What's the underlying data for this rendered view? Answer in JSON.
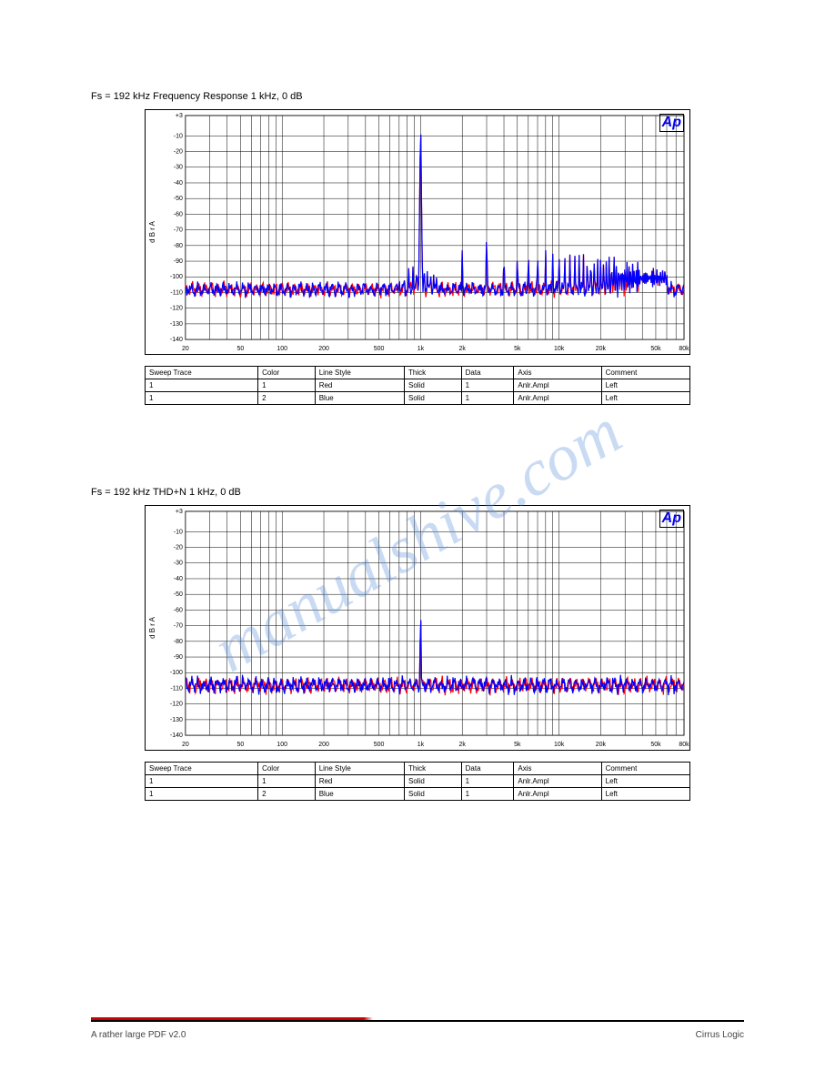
{
  "watermark_text": "manualshive.com",
  "footer": {
    "left": "A rather large PDF v2.0",
    "right": "Cirrus Logic"
  },
  "chart1": {
    "section_title": "Fs = 192 kHz Frequency Response 1 kHz, 0 dB",
    "type": "line",
    "ap_label": "Ap",
    "ylabel": "d B r  A",
    "xlabel": "Hz",
    "xlim": [
      20,
      80000
    ],
    "ylim": [
      -140,
      3
    ],
    "xscale": "log",
    "ytick_positions": [
      3,
      -10,
      -20,
      -30,
      -40,
      -50,
      -60,
      -70,
      -80,
      -90,
      -100,
      -110,
      -120,
      -130,
      -140
    ],
    "ytick_labels": [
      "+3",
      "-10",
      "-20",
      "-30",
      "-40",
      "-50",
      "-60",
      "-70",
      "-80",
      "-90",
      "-100",
      "-110",
      "-120",
      "-130",
      "-140"
    ],
    "xtick_positions": [
      20,
      50,
      100,
      200,
      500,
      1000,
      2000,
      5000,
      10000,
      20000,
      50000,
      80000
    ],
    "xtick_labels": [
      "20",
      "50",
      "100",
      "200",
      "500",
      "1k",
      "2k",
      "5k",
      "10k",
      "20k",
      "50k",
      "80k"
    ],
    "series_colors": [
      "#ff0000",
      "#0000ff"
    ],
    "grid_color": "#000000",
    "background_color": "#ffffff",
    "legend": {
      "headers": [
        "Sweep Trace",
        "Color",
        "Line Style",
        "Thick",
        "Data",
        "Axis",
        "Comment"
      ],
      "rows": [
        [
          "1",
          "1",
          "Red",
          "Solid",
          "1",
          "Anlr.Ampl",
          "Left",
          ""
        ],
        [
          "1",
          "2",
          "Blue",
          "Solid",
          "1",
          "Anlr.Ampl",
          "Left",
          ""
        ]
      ]
    }
  },
  "chart2": {
    "section_title": "Fs = 192 kHz THD+N 1 kHz, 0 dB",
    "type": "line",
    "ap_label": "Ap",
    "ylabel": "d B r  A",
    "xlabel": "Hz",
    "xlim": [
      20,
      80000
    ],
    "ylim": [
      -140,
      3
    ],
    "xscale": "log",
    "ytick_positions": [
      3,
      -10,
      -20,
      -30,
      -40,
      -50,
      -60,
      -70,
      -80,
      -90,
      -100,
      -110,
      -120,
      -130,
      -140
    ],
    "ytick_labels": [
      "+3",
      "-10",
      "-20",
      "-30",
      "-40",
      "-50",
      "-60",
      "-70",
      "-80",
      "-90",
      "-100",
      "-110",
      "-120",
      "-130",
      "-140"
    ],
    "xtick_positions": [
      20,
      50,
      100,
      200,
      500,
      1000,
      2000,
      5000,
      10000,
      20000,
      50000,
      80000
    ],
    "xtick_labels": [
      "20",
      "50",
      "100",
      "200",
      "500",
      "1k",
      "2k",
      "5k",
      "10k",
      "20k",
      "50k",
      "80k"
    ],
    "series_colors": [
      "#ff0000",
      "#0000ff"
    ],
    "grid_color": "#000000",
    "background_color": "#ffffff",
    "legend": {
      "headers": [
        "Sweep Trace",
        "Color",
        "Line Style",
        "Thick",
        "Data",
        "Axis",
        "Comment"
      ],
      "rows": [
        [
          "1",
          "1",
          "Red",
          "Solid",
          "1",
          "Anlr.Ampl",
          "Left",
          ""
        ],
        [
          "1",
          "2",
          "Blue",
          "Solid",
          "1",
          "Anlr.Ampl",
          "Left",
          ""
        ]
      ]
    }
  }
}
